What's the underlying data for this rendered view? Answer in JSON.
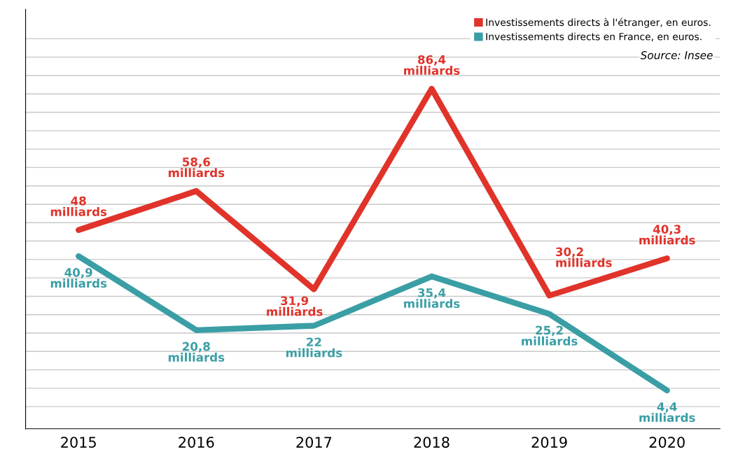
{
  "chart_data": {
    "type": "line",
    "categories": [
      "2015",
      "2016",
      "2017",
      "2018",
      "2019",
      "2020"
    ],
    "series": [
      {
        "name": "Investissements directs à l'étranger, en euros.",
        "color": "#e0332a",
        "values": [
          48,
          58.6,
          31.9,
          86.4,
          30.2,
          40.3
        ],
        "value_labels": [
          "48\nmilliards",
          "58,6\nmilliards",
          "31,9\nmilliards",
          "86,4\nmilliards",
          "30,2\nmilliards",
          "40,3\nmilliards"
        ]
      },
      {
        "name": "Investissements directs en France, en euros.",
        "color": "#3a9ea5",
        "values": [
          40.9,
          20.8,
          22,
          35.4,
          25.2,
          4.4
        ],
        "value_labels": [
          "40,9\nmilliards",
          "20,8\nmilliards",
          "22\nmilliards",
          "35,4\nmilliards",
          "25,2\nmilliards",
          "4,4\nmilliards"
        ]
      }
    ],
    "ylim": [
      -6,
      108
    ],
    "yticks": [
      {
        "value": 0,
        "label": null
      },
      {
        "value": 5,
        "label": null
      },
      {
        "value": 10,
        "label": null
      },
      {
        "value": 15,
        "label": null
      },
      {
        "value": 20,
        "label": null
      },
      {
        "value": 25,
        "label": null
      },
      {
        "value": 30,
        "label": null
      },
      {
        "value": 35,
        "label": null
      },
      {
        "value": 40,
        "label": null
      },
      {
        "value": 45,
        "label": null
      },
      {
        "value": 50,
        "label": null
      },
      {
        "value": 55,
        "label": null
      },
      {
        "value": 60,
        "label": null
      },
      {
        "value": 65,
        "label": null
      },
      {
        "value": 70,
        "label": null
      },
      {
        "value": 75,
        "label": null
      },
      {
        "value": 80,
        "label": null
      },
      {
        "value": 85,
        "label": null
      },
      {
        "value": 90,
        "label": null
      },
      {
        "value": 95,
        "label": null
      },
      {
        "value": 100,
        "label": null
      }
    ],
    "tick_labels": "x",
    "grid": "y",
    "legend": "top right",
    "marker": "none",
    "line_style": "solid",
    "annotations": [
      "Source: Insee"
    ]
  }
}
